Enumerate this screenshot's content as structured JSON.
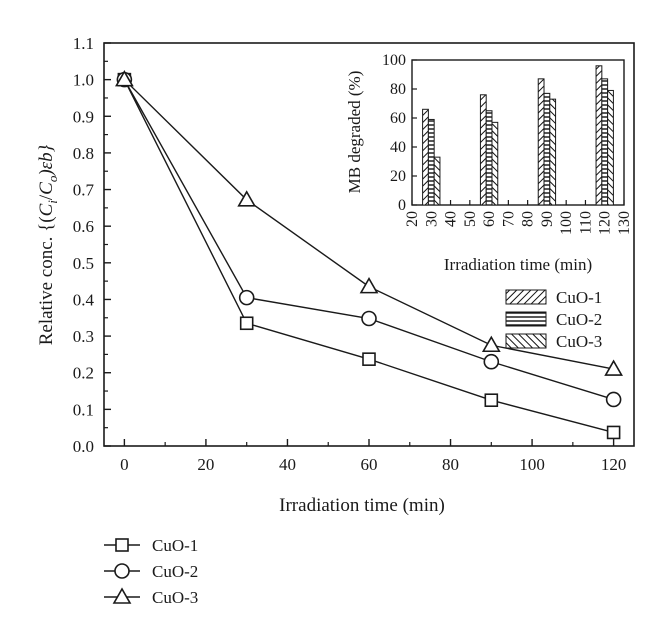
{
  "chart_data": [
    {
      "type": "line",
      "xlabel": "Irradiation time (min)",
      "ylabel_prefix": "Relative conc. {(",
      "ylabel_c1": "C",
      "ylabel_sub1": "i",
      "ylabel_slash": "/",
      "ylabel_c2": "C",
      "ylabel_sub2": "o",
      "ylabel_suffix": ")εb}",
      "xlim": [
        -5,
        125
      ],
      "ylim": [
        0.0,
        1.1
      ],
      "x_ticks": [
        0,
        20,
        40,
        60,
        80,
        100,
        120
      ],
      "y_ticks": [
        0.0,
        0.1,
        0.2,
        0.3,
        0.4,
        0.5,
        0.6,
        0.7,
        0.8,
        0.9,
        1.0,
        1.1
      ],
      "x": [
        0,
        30,
        60,
        90,
        120
      ],
      "series": [
        {
          "name": "CuO-1",
          "marker": "square",
          "values": [
            1.0,
            0.335,
            0.237,
            0.125,
            0.037
          ]
        },
        {
          "name": "CuO-2",
          "marker": "circle",
          "values": [
            1.0,
            0.405,
            0.348,
            0.23,
            0.127
          ]
        },
        {
          "name": "CuO-3",
          "marker": "triangle",
          "values": [
            1.0,
            0.672,
            0.435,
            0.275,
            0.21
          ]
        }
      ],
      "legend_position": "bottom-left-outside",
      "grid": false
    },
    {
      "type": "bar",
      "xlabel": "Irradiation time (min)",
      "ylabel": "MB degraded (%)",
      "xlim": [
        20,
        130
      ],
      "ylim": [
        0,
        100
      ],
      "x_ticks": [
        20,
        30,
        40,
        50,
        60,
        70,
        80,
        90,
        100,
        110,
        120,
        130
      ],
      "y_ticks": [
        0,
        20,
        40,
        60,
        80,
        100
      ],
      "categories": [
        30,
        60,
        90,
        120
      ],
      "series": [
        {
          "name": "CuO-1",
          "pattern": "diagonal-forward",
          "values": [
            66,
            76,
            87,
            96
          ]
        },
        {
          "name": "CuO-2",
          "pattern": "horizontal",
          "values": [
            59,
            65,
            77,
            87
          ]
        },
        {
          "name": "CuO-3",
          "pattern": "diagonal-back",
          "values": [
            33,
            57,
            73,
            79
          ]
        }
      ],
      "legend_position": "below-inset-right",
      "grid": false
    }
  ]
}
